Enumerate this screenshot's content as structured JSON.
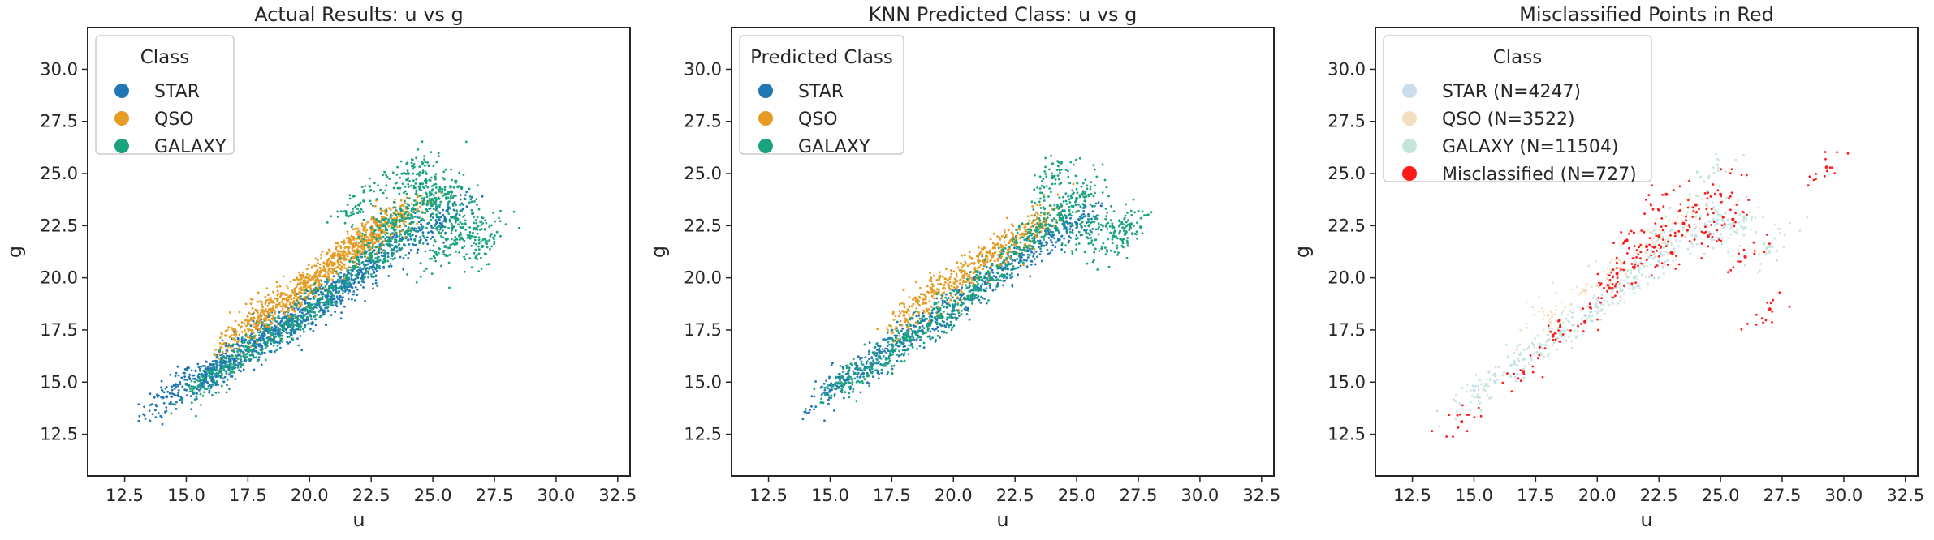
{
  "colors": {
    "star": "#1f77b4",
    "qso": "#e69c24",
    "galaxy": "#1aa37f",
    "misclassified": "#ff1a1a",
    "star_faded": "#c9deea",
    "qso_faded": "#f6dfbf",
    "galaxy_faded": "#c4e6db"
  },
  "chart_data": [
    {
      "type": "scatter",
      "title": "Actual Results: u vs g",
      "xlabel": "u",
      "ylabel": "g",
      "xlim": [
        11.0,
        33.0
      ],
      "ylim": [
        10.5,
        32.0
      ],
      "xticks": [
        "12.5",
        "15.0",
        "17.5",
        "20.0",
        "22.5",
        "25.0",
        "27.5",
        "30.0",
        "32.5"
      ],
      "yticks": [
        "12.5",
        "15.0",
        "17.5",
        "20.0",
        "22.5",
        "25.0",
        "27.5",
        "30.0"
      ],
      "legend": {
        "title": "Class",
        "position": "upper-left",
        "entries": [
          {
            "label": "STAR",
            "color_key": "star"
          },
          {
            "label": "QSO",
            "color_key": "qso"
          },
          {
            "label": "GALAXY",
            "color_key": "galaxy"
          }
        ]
      },
      "series": [
        {
          "name": "STAR",
          "color_key": "star",
          "points": [
            [
              14.2,
              14.3
            ],
            [
              15.0,
              14.9
            ],
            [
              15.8,
              15.4
            ],
            [
              16.5,
              16.0
            ],
            [
              17.2,
              16.5
            ],
            [
              17.9,
              17.0
            ],
            [
              18.6,
              17.5
            ],
            [
              19.3,
              18.0
            ],
            [
              20.0,
              18.6
            ],
            [
              20.7,
              19.1
            ],
            [
              21.4,
              19.7
            ],
            [
              22.0,
              20.2
            ],
            [
              16.0,
              15.2
            ],
            [
              18.0,
              16.8
            ],
            [
              19.5,
              17.8
            ],
            [
              21.0,
              19.0
            ],
            [
              22.5,
              20.5
            ],
            [
              23.5,
              21.5
            ],
            [
              24.5,
              22.3
            ],
            [
              25.5,
              22.8
            ]
          ]
        },
        {
          "name": "QSO",
          "color_key": "qso",
          "points": [
            [
              17.0,
              17.3
            ],
            [
              17.8,
              17.8
            ],
            [
              18.5,
              18.5
            ],
            [
              19.2,
              19.1
            ],
            [
              19.8,
              19.6
            ],
            [
              20.4,
              20.1
            ],
            [
              21.0,
              20.7
            ],
            [
              21.6,
              21.2
            ],
            [
              22.2,
              21.8
            ],
            [
              22.8,
              22.3
            ],
            [
              23.4,
              22.8
            ],
            [
              18.2,
              18.4
            ],
            [
              20.0,
              19.9
            ],
            [
              21.8,
              21.5
            ],
            [
              22.6,
              22.1
            ],
            [
              23.8,
              23.0
            ]
          ]
        },
        {
          "name": "GALAXY",
          "color_key": "galaxy",
          "points": [
            [
              15.5,
              14.8
            ],
            [
              16.5,
              15.7
            ],
            [
              17.5,
              16.5
            ],
            [
              18.5,
              17.3
            ],
            [
              19.5,
              18.1
            ],
            [
              20.5,
              19.0
            ],
            [
              21.5,
              20.0
            ],
            [
              22.5,
              21.0
            ],
            [
              23.0,
              22.5
            ],
            [
              24.0,
              23.0
            ],
            [
              25.0,
              23.5
            ],
            [
              26.0,
              22.8
            ],
            [
              26.5,
              22.0
            ],
            [
              24.5,
              24.5
            ],
            [
              23.5,
              21.8
            ],
            [
              25.5,
              21.5
            ],
            [
              27.0,
              21.5
            ],
            [
              22.0,
              23.5
            ],
            [
              24.0,
              25.0
            ],
            [
              25.5,
              24.0
            ]
          ]
        }
      ]
    },
    {
      "type": "scatter",
      "title": "KNN Predicted Class: u vs g",
      "xlabel": "u",
      "ylabel": "g",
      "xlim": [
        11.0,
        33.0
      ],
      "ylim": [
        10.5,
        32.0
      ],
      "xticks": [
        "12.5",
        "15.0",
        "17.5",
        "20.0",
        "22.5",
        "25.0",
        "27.5",
        "30.0",
        "32.5"
      ],
      "yticks": [
        "12.5",
        "15.0",
        "17.5",
        "20.0",
        "22.5",
        "25.0",
        "27.5",
        "30.0"
      ],
      "legend": {
        "title": "Predicted Class",
        "position": "upper-left",
        "entries": [
          {
            "label": "STAR",
            "color_key": "star"
          },
          {
            "label": "QSO",
            "color_key": "qso"
          },
          {
            "label": "GALAXY",
            "color_key": "galaxy"
          }
        ]
      },
      "series": [
        {
          "name": "STAR",
          "color_key": "star",
          "points": [
            [
              15.0,
              14.6
            ],
            [
              16.0,
              15.4
            ],
            [
              17.0,
              16.2
            ],
            [
              18.0,
              17.0
            ],
            [
              19.0,
              17.8
            ],
            [
              20.0,
              18.6
            ],
            [
              21.0,
              19.5
            ],
            [
              22.0,
              20.4
            ],
            [
              23.0,
              21.3
            ],
            [
              24.0,
              22.0
            ],
            [
              25.0,
              22.6
            ]
          ]
        },
        {
          "name": "QSO",
          "color_key": "qso",
          "points": [
            [
              18.0,
              18.2
            ],
            [
              18.8,
              18.8
            ],
            [
              19.6,
              19.5
            ],
            [
              20.4,
              20.1
            ],
            [
              21.2,
              20.8
            ],
            [
              22.0,
              21.5
            ],
            [
              22.8,
              22.1
            ],
            [
              23.5,
              22.6
            ]
          ]
        },
        {
          "name": "GALAXY",
          "color_key": "galaxy",
          "points": [
            [
              15.5,
              14.9
            ],
            [
              16.5,
              15.7
            ],
            [
              17.5,
              16.5
            ],
            [
              18.5,
              17.3
            ],
            [
              19.5,
              18.1
            ],
            [
              20.5,
              19.0
            ],
            [
              21.5,
              20.0
            ],
            [
              22.5,
              21.2
            ],
            [
              23.5,
              22.5
            ],
            [
              24.5,
              23.2
            ],
            [
              25.5,
              22.5
            ],
            [
              26.5,
              22.0
            ],
            [
              24.0,
              24.8
            ],
            [
              25.0,
              23.8
            ],
            [
              27.0,
              22.2
            ]
          ]
        }
      ]
    },
    {
      "type": "scatter",
      "title": "Misclassified Points in Red",
      "xlabel": "u",
      "ylabel": "g",
      "xlim": [
        11.0,
        33.0
      ],
      "ylim": [
        10.5,
        32.0
      ],
      "xticks": [
        "12.5",
        "15.0",
        "17.5",
        "20.0",
        "22.5",
        "25.0",
        "27.5",
        "30.0",
        "32.5"
      ],
      "yticks": [
        "12.5",
        "15.0",
        "17.5",
        "20.0",
        "22.5",
        "25.0",
        "27.5",
        "30.0"
      ],
      "legend": {
        "title": "Class",
        "position": "upper-left",
        "entries": [
          {
            "label": "STAR (N=4247)",
            "color_key": "star_faded"
          },
          {
            "label": "QSO (N=3522)",
            "color_key": "qso_faded"
          },
          {
            "label": "GALAXY (N=11504)",
            "color_key": "galaxy_faded"
          },
          {
            "label": "Misclassified (N=727)",
            "color_key": "misclassified"
          }
        ]
      },
      "series": [
        {
          "name": "STAR (N=4247)",
          "color_key": "star_faded",
          "points": [
            [
              15.0,
              14.6
            ],
            [
              16.5,
              15.8
            ],
            [
              18.0,
              17.0
            ],
            [
              19.5,
              18.2
            ],
            [
              21.0,
              19.4
            ],
            [
              22.5,
              20.8
            ],
            [
              24.0,
              22.0
            ],
            [
              25.5,
              22.6
            ]
          ]
        },
        {
          "name": "QSO (N=3522)",
          "color_key": "qso_faded",
          "points": [
            [
              18.0,
              18.2
            ],
            [
              19.5,
              19.4
            ],
            [
              21.0,
              20.7
            ],
            [
              22.5,
              21.9
            ],
            [
              23.5,
              22.6
            ]
          ]
        },
        {
          "name": "GALAXY (N=11504)",
          "color_key": "galaxy_faded",
          "points": [
            [
              15.5,
              14.9
            ],
            [
              17.0,
              16.1
            ],
            [
              18.5,
              17.3
            ],
            [
              20.0,
              18.6
            ],
            [
              21.5,
              20.0
            ],
            [
              23.0,
              22.3
            ],
            [
              24.5,
              23.0
            ],
            [
              26.0,
              22.4
            ],
            [
              24.5,
              24.8
            ],
            [
              27.0,
              21.5
            ]
          ]
        },
        {
          "name": "Misclassified (N=727)",
          "color_key": "misclassified",
          "points": [
            [
              14.5,
              13.1
            ],
            [
              17.0,
              15.5
            ],
            [
              18.2,
              17.2
            ],
            [
              19.5,
              17.9
            ],
            [
              20.5,
              19.5
            ],
            [
              21.5,
              20.5
            ],
            [
              22.0,
              21.5
            ],
            [
              22.5,
              22.0
            ],
            [
              23.0,
              21.2
            ],
            [
              23.5,
              22.6
            ],
            [
              24.0,
              23.5
            ],
            [
              24.5,
              22.0
            ],
            [
              25.0,
              24.0
            ],
            [
              25.5,
              22.8
            ],
            [
              26.0,
              21.0
            ],
            [
              27.0,
              18.5
            ],
            [
              29.3,
              25.3
            ],
            [
              22.8,
              24.0
            ],
            [
              21.2,
              21.8
            ],
            [
              20.8,
              20.2
            ]
          ]
        }
      ]
    }
  ]
}
